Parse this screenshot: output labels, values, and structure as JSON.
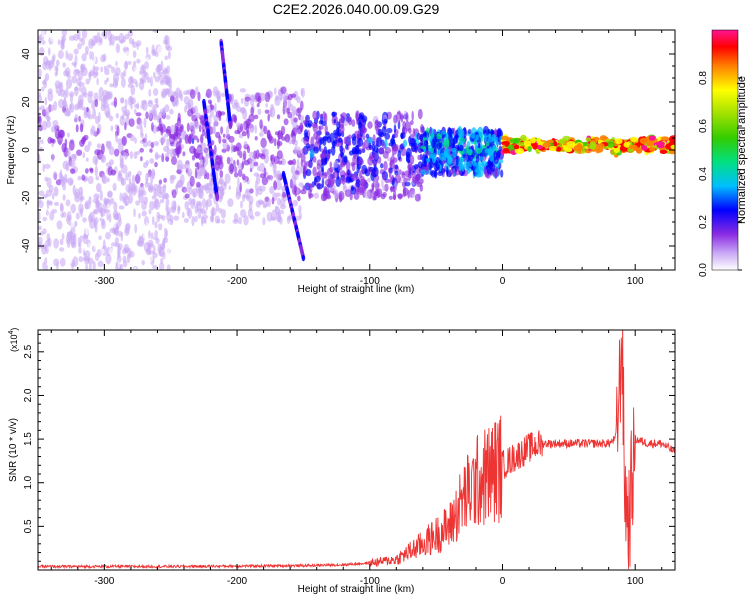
{
  "title": "C2E2.2026.040.00.09.G29",
  "chart_data": [
    {
      "type": "heatmap",
      "name": "spectrogram",
      "xlabel": "Height of straight line (km)",
      "ylabel": "Frequency (Hz)",
      "xlim": [
        -350,
        130
      ],
      "ylim": [
        -50,
        50
      ],
      "xticks": [
        -300,
        -200,
        -100,
        0,
        100
      ],
      "yticks": [
        -40,
        -20,
        0,
        20,
        40
      ],
      "colorbar": {
        "label": "Normalized spectral amplitude",
        "range": [
          0.0,
          1.0
        ],
        "ticks": [
          0.0,
          0.2,
          0.4,
          0.6,
          0.8
        ],
        "tick_labels": [
          "0.0",
          "0.2",
          "0.4",
          "0.6",
          "0.8"
        ],
        "colors": [
          "#ffffff",
          "#c9a9f5",
          "#8a2be2",
          "#0000ff",
          "#00bfff",
          "#00e080",
          "#33cc00",
          "#a0e000",
          "#ffff00",
          "#ff8000",
          "#ff0000",
          "#ff1493"
        ]
      },
      "regions": [
        {
          "x": [
            -350,
            -250
          ],
          "freq_range": [
            -50,
            50
          ],
          "amplitude": "low, scattered noise"
        },
        {
          "x": [
            -250,
            -150
          ],
          "freq_range": [
            -30,
            25
          ],
          "amplitude": "low to moderate"
        },
        {
          "x": [
            -150,
            -60
          ],
          "freq_range": [
            -20,
            15
          ],
          "amplitude": "moderate"
        },
        {
          "x": [
            -60,
            0
          ],
          "freq_range": [
            -10,
            8
          ],
          "amplitude": "moderate to high"
        },
        {
          "x": [
            0,
            130
          ],
          "center_freq": 2,
          "freq_range": [
            -2,
            6
          ],
          "amplitude": "high, narrow band"
        }
      ]
    },
    {
      "type": "line",
      "name": "snr",
      "xlabel": "Height of straight line (km)",
      "ylabel": "SNR (10 * v/v)",
      "scale_label": "(x10",
      "scale_exp": "4",
      "scale_close": ")",
      "xlim": [
        -350,
        130
      ],
      "ylim": [
        0,
        2.75
      ],
      "xticks": [
        -300,
        -200,
        -100,
        0,
        100
      ],
      "yticks": [
        0.5,
        1.0,
        1.5,
        2.0,
        2.5
      ],
      "ytick_labels": [
        "0.5",
        "1.0",
        "1.5",
        "2.0",
        "2.5"
      ],
      "color": "#ee3333",
      "series": [
        {
          "name": "SNR",
          "x": [
            -350,
            -250,
            -150,
            -120,
            -100,
            -80,
            -60,
            -50,
            -40,
            -30,
            -20,
            -10,
            0,
            10,
            20,
            30,
            40,
            50,
            60,
            70,
            80,
            85,
            88,
            90,
            92,
            95,
            100,
            110,
            120,
            130
          ],
          "y": [
            0.04,
            0.04,
            0.05,
            0.06,
            0.08,
            0.12,
            0.3,
            0.4,
            0.5,
            0.8,
            1.0,
            1.1,
            1.2,
            1.3,
            1.4,
            1.45,
            1.45,
            1.45,
            1.45,
            1.45,
            1.45,
            1.5,
            2.0,
            2.75,
            1.0,
            0.5,
            1.5,
            1.45,
            1.45,
            1.35
          ]
        }
      ]
    }
  ]
}
